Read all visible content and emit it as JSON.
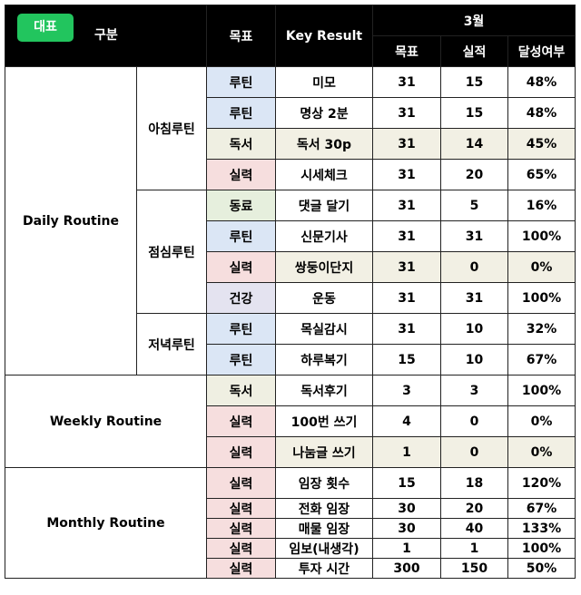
{
  "badge": "대표",
  "header": {
    "category": "구분",
    "goal": "목표",
    "key_result": "Key Result",
    "month": "3월",
    "target": "목표",
    "actual": "실적",
    "achievement": "달성여부"
  },
  "groups": [
    {
      "name": "Daily Routine",
      "subgroups": [
        {
          "name": "아침루틴",
          "rows": [
            {
              "goal": "루틴",
              "kr": "미모",
              "target": "31",
              "actual": "15",
              "rate": "48%"
            },
            {
              "goal": "루틴",
              "kr": "명상 2분",
              "target": "31",
              "actual": "15",
              "rate": "48%"
            },
            {
              "goal": "독서",
              "kr": "독서 30p",
              "target": "31",
              "actual": "14",
              "rate": "45%"
            },
            {
              "goal": "실력",
              "kr": "시세체크",
              "target": "31",
              "actual": "20",
              "rate": "65%"
            }
          ]
        },
        {
          "name": "점심루틴",
          "rows": [
            {
              "goal": "동료",
              "kr": "댓글 달기",
              "target": "31",
              "actual": "5",
              "rate": "16%"
            },
            {
              "goal": "루틴",
              "kr": "신문기사",
              "target": "31",
              "actual": "31",
              "rate": "100%"
            },
            {
              "goal": "실력",
              "kr": "쌍둥이단지",
              "target": "31",
              "actual": "0",
              "rate": "0%"
            },
            {
              "goal": "건강",
              "kr": "운동",
              "target": "31",
              "actual": "31",
              "rate": "100%"
            }
          ]
        },
        {
          "name": "저녁루틴",
          "rows": [
            {
              "goal": "루틴",
              "kr": "목실감시",
              "target": "31",
              "actual": "10",
              "rate": "32%"
            },
            {
              "goal": "루틴",
              "kr": "하루복기",
              "target": "15",
              "actual": "10",
              "rate": "67%"
            }
          ]
        }
      ]
    },
    {
      "name": "Weekly Routine",
      "rows": [
        {
          "goal": "독서",
          "kr": "독서후기",
          "target": "3",
          "actual": "3",
          "rate": "100%"
        },
        {
          "goal": "실력",
          "kr": "100번 쓰기",
          "target": "4",
          "actual": "0",
          "rate": "0%"
        },
        {
          "goal": "실력",
          "kr": "나눔글 쓰기",
          "target": "1",
          "actual": "0",
          "rate": "0%"
        }
      ]
    },
    {
      "name": "Monthly Routine",
      "rows": [
        {
          "goal": "실력",
          "kr": "임장 횟수",
          "target": "15",
          "actual": "18",
          "rate": "120%"
        },
        {
          "goal": "실력",
          "kr": "전화 임장",
          "target": "30",
          "actual": "20",
          "rate": "67%"
        },
        {
          "goal": "실력",
          "kr": "매물 임장",
          "target": "30",
          "actual": "40",
          "rate": "133%"
        },
        {
          "goal": "실력",
          "kr": "임보(내생각)",
          "target": "1",
          "actual": "1",
          "rate": "100%"
        },
        {
          "goal": "실력",
          "kr": "투자 시간",
          "target": "300",
          "actual": "150",
          "rate": "50%"
        }
      ]
    }
  ]
}
